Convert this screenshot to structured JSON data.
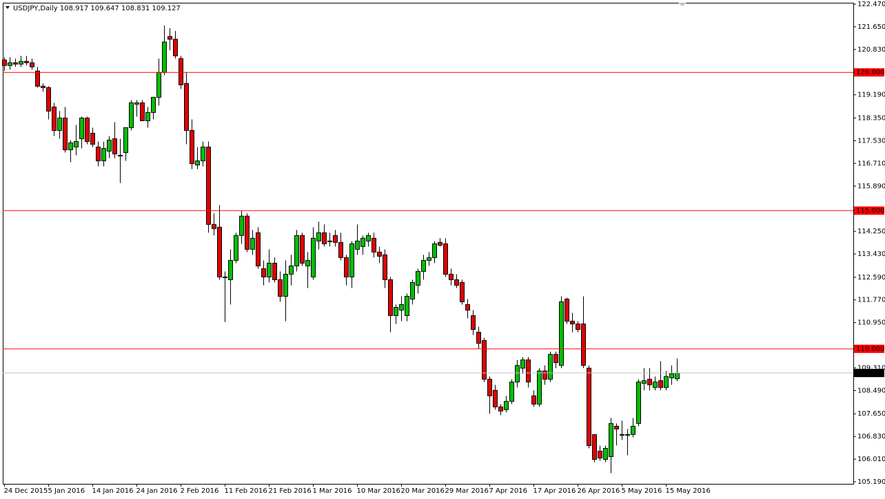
{
  "chart_data": {
    "type": "candlestick",
    "title": "USDJPY,Daily  108.917 109.647 108.831 109.127",
    "categories": [
      "24 Dec 2015",
      null,
      null,
      null,
      null,
      null,
      null,
      null,
      "5 Jan 2016",
      null,
      null,
      null,
      null,
      null,
      null,
      null,
      "14 Jan 2016",
      null,
      null,
      null,
      null,
      null,
      null,
      null,
      "24 Jan 2016",
      null,
      null,
      null,
      null,
      null,
      null,
      null,
      "2 Feb 2016",
      null,
      null,
      null,
      null,
      null,
      null,
      null,
      "11 Feb 2016",
      null,
      null,
      null,
      null,
      null,
      null,
      null,
      "21 Feb 2016",
      null,
      null,
      null,
      null,
      null,
      null,
      null,
      "1 Mar 2016",
      null,
      null,
      null,
      null,
      null,
      null,
      null,
      "10 Mar 2016",
      null,
      null,
      null,
      null,
      null,
      null,
      null,
      "20 Mar 2016",
      null,
      null,
      null,
      null,
      null,
      null,
      null,
      "29 Mar 2016",
      null,
      null,
      null,
      null,
      null,
      null,
      null,
      "7 Apr 2016",
      null,
      null,
      null,
      null,
      null,
      null,
      null,
      "17 Apr 2016",
      null,
      null,
      null,
      null,
      null,
      null,
      null,
      "26 Apr 2016",
      null,
      null,
      null,
      null,
      null,
      null,
      null,
      "5 May 2016",
      null,
      null,
      null,
      null,
      null,
      null,
      null,
      "15 May 2016",
      null,
      null
    ],
    "open": [
      120.45,
      120.25,
      120.35,
      120.3,
      120.4,
      120.35,
      120.05,
      119.5,
      119.45,
      118.75,
      117.9,
      118.35,
      117.2,
      117.3,
      117.6,
      118.35,
      117.8,
      117.3,
      116.8,
      117.15,
      117.6,
      117.0,
      117.1,
      118.0,
      118.85,
      118.9,
      118.25,
      118.55,
      119.1,
      120.0,
      121.3,
      121.2,
      120.5,
      119.6,
      117.9,
      116.65,
      116.8,
      117.3,
      114.5,
      114.4,
      112.6,
      112.5,
      113.2,
      114.1,
      114.8,
      113.6,
      114.2,
      112.9,
      112.6,
      113.1,
      112.5,
      111.9,
      112.7,
      113.0,
      114.1,
      113.0,
      112.6,
      113.9,
      114.2,
      113.9,
      114.1,
      113.85,
      113.3,
      112.6,
      113.6,
      113.7,
      113.9,
      114.0,
      113.5,
      113.4,
      112.5,
      111.2,
      111.4,
      111.2,
      111.8,
      112.3,
      112.8,
      113.2,
      113.3,
      113.85,
      113.8,
      112.7,
      112.5,
      112.4,
      111.6,
      111.2,
      110.6,
      110.3,
      108.9,
      108.5,
      107.9,
      107.8,
      108.1,
      108.8,
      109.3,
      109.6,
      108.3,
      108.0,
      109.2,
      108.9,
      109.8,
      109.4,
      111.8,
      111.0,
      110.9,
      110.9,
      109.3,
      106.9,
      106.3,
      106.0,
      106.1,
      107.2,
      106.9,
      106.9,
      106.9,
      107.3,
      108.75,
      108.9,
      108.6,
      108.85,
      108.6,
      108.95,
      108.917
    ],
    "high": [
      120.55,
      120.55,
      120.5,
      120.6,
      120.6,
      120.5,
      120.2,
      119.6,
      119.5,
      118.9,
      118.6,
      118.75,
      117.55,
      118.1,
      118.4,
      118.4,
      118.0,
      117.5,
      117.5,
      117.7,
      118.2,
      117.6,
      118.0,
      119.0,
      119.0,
      119.0,
      118.75,
      119.1,
      120.5,
      121.7,
      121.6,
      121.5,
      120.6,
      120.0,
      118.3,
      117.3,
      117.5,
      117.5,
      114.9,
      115.2,
      112.8,
      113.6,
      114.2,
      115.0,
      114.9,
      114.3,
      114.4,
      113.2,
      113.6,
      113.3,
      112.8,
      113.2,
      113.4,
      114.3,
      114.2,
      113.5,
      114.4,
      114.6,
      114.5,
      114.2,
      114.3,
      114.2,
      113.4,
      113.9,
      114.5,
      114.1,
      114.2,
      114.2,
      113.7,
      113.6,
      112.6,
      111.6,
      111.9,
      112.0,
      112.5,
      112.9,
      113.4,
      113.5,
      113.9,
      114.0,
      114.0,
      112.9,
      112.7,
      112.5,
      111.8,
      111.4,
      110.8,
      110.4,
      109.0,
      108.7,
      108.0,
      108.3,
      108.9,
      109.6,
      109.7,
      109.7,
      108.5,
      109.3,
      109.4,
      109.9,
      109.9,
      111.9,
      111.85,
      111.3,
      111.0,
      111.9,
      109.4,
      106.9,
      106.5,
      106.5,
      107.5,
      107.3,
      107.4,
      107.1,
      107.5,
      108.9,
      109.3,
      109.3,
      109.0,
      109.55,
      109.2,
      109.4,
      109.647
    ],
    "low": [
      120.05,
      120.1,
      120.2,
      120.2,
      120.25,
      120.1,
      119.45,
      119.3,
      118.3,
      117.7,
      117.6,
      117.1,
      116.75,
      117.0,
      117.25,
      117.4,
      117.3,
      116.6,
      116.6,
      116.9,
      116.9,
      116.0,
      116.8,
      117.9,
      118.4,
      118.25,
      118.0,
      118.3,
      118.8,
      119.9,
      120.8,
      120.5,
      119.4,
      117.4,
      116.5,
      116.5,
      116.6,
      114.2,
      114.1,
      112.5,
      110.97,
      111.6,
      113.1,
      113.8,
      113.5,
      113.4,
      112.9,
      112.3,
      112.4,
      112.4,
      111.7,
      111.0,
      112.3,
      112.8,
      113.0,
      112.2,
      112.5,
      113.6,
      113.7,
      113.7,
      113.7,
      113.2,
      112.3,
      112.2,
      113.4,
      113.4,
      113.7,
      113.3,
      113.1,
      112.2,
      110.6,
      110.9,
      111.0,
      111.0,
      111.6,
      112.0,
      112.5,
      113.0,
      113.1,
      113.7,
      112.6,
      112.3,
      112.2,
      111.6,
      111.1,
      110.5,
      110.0,
      108.8,
      107.65,
      107.8,
      107.6,
      107.7,
      108.0,
      108.6,
      109.1,
      108.6,
      107.9,
      107.9,
      108.7,
      108.8,
      109.3,
      109.3,
      110.9,
      110.6,
      110.6,
      109.3,
      106.4,
      105.9,
      105.95,
      105.9,
      105.5,
      106.5,
      106.7,
      106.15,
      106.8,
      107.2,
      108.5,
      108.5,
      108.5,
      108.5,
      108.5,
      108.7,
      108.831
    ],
    "close": [
      120.25,
      120.35,
      120.3,
      120.4,
      120.35,
      120.2,
      119.5,
      119.45,
      118.6,
      117.9,
      118.35,
      117.2,
      117.45,
      117.5,
      118.35,
      117.5,
      117.4,
      116.8,
      117.25,
      117.55,
      117.05,
      117.0,
      118.0,
      118.9,
      118.9,
      118.25,
      118.55,
      119.1,
      120.0,
      121.1,
      121.2,
      120.6,
      119.55,
      117.9,
      116.7,
      116.8,
      117.3,
      114.5,
      114.35,
      112.6,
      112.6,
      113.2,
      114.1,
      114.8,
      113.6,
      114.0,
      113.0,
      112.6,
      113.1,
      112.5,
      111.9,
      112.7,
      113.0,
      114.1,
      113.1,
      113.2,
      114.0,
      114.2,
      113.8,
      113.9,
      113.85,
      113.3,
      112.6,
      113.8,
      113.9,
      114.0,
      114.1,
      113.5,
      113.35,
      112.5,
      111.2,
      111.5,
      111.6,
      111.9,
      112.4,
      112.8,
      113.2,
      113.3,
      113.8,
      113.75,
      112.7,
      112.5,
      112.3,
      111.7,
      111.4,
      110.7,
      110.2,
      108.9,
      108.3,
      107.9,
      107.75,
      108.1,
      108.8,
      109.4,
      109.6,
      108.8,
      108.0,
      109.2,
      108.9,
      109.8,
      109.5,
      111.7,
      111.0,
      110.9,
      110.7,
      109.4,
      106.5,
      106.0,
      106.05,
      106.4,
      107.3,
      107.1,
      106.9,
      106.9,
      107.2,
      108.8,
      108.85,
      108.7,
      108.8,
      108.6,
      109.0,
      109.1,
      109.127
    ],
    "bull_color": "#00c000",
    "bear_color": "#e00000",
    "ylim": [
      105.19,
      122.47
    ],
    "yticks": [
      {
        "value": 122.47,
        "label": "122.470"
      },
      {
        "value": 121.65,
        "label": "121.650"
      },
      {
        "value": 120.83,
        "label": "120.830"
      },
      {
        "value": 119.19,
        "label": "119.190"
      },
      {
        "value": 118.35,
        "label": "118.350"
      },
      {
        "value": 117.53,
        "label": "117.530"
      },
      {
        "value": 116.71,
        "label": "116.710"
      },
      {
        "value": 115.89,
        "label": "115.890"
      },
      {
        "value": 114.25,
        "label": "114.250"
      },
      {
        "value": 113.43,
        "label": "113.430"
      },
      {
        "value": 112.59,
        "label": "112.590"
      },
      {
        "value": 111.77,
        "label": "111.770"
      },
      {
        "value": 110.95,
        "label": "110.950"
      },
      {
        "value": 109.31,
        "label": "109.310"
      },
      {
        "value": 108.49,
        "label": "108.490"
      },
      {
        "value": 107.65,
        "label": "107.650"
      },
      {
        "value": 106.83,
        "label": "106.830"
      },
      {
        "value": 106.01,
        "label": "106.010"
      },
      {
        "value": 105.19,
        "label": "105.190"
      }
    ],
    "levels": [
      {
        "value": 120,
        "label": "120.000"
      },
      {
        "value": 115,
        "label": "115.000"
      },
      {
        "value": 110,
        "label": "110.000"
      }
    ],
    "level_color": "#ff0000",
    "current_price": 109.127
  }
}
